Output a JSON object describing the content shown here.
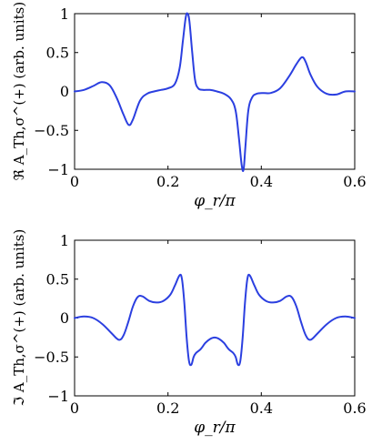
{
  "chart_data": [
    {
      "type": "line",
      "title": "",
      "xlabel": "φ_r/π",
      "ylabel": "ℜ A_Th,σ^(+) (arb. units)",
      "xlim": [
        0,
        0.6
      ],
      "ylim": [
        -1,
        1
      ],
      "xticks": [
        "0",
        "0.2",
        "0.4",
        "0.6"
      ],
      "yticks": [
        "1",
        "0.5",
        "0",
        "−0.5",
        "−1"
      ],
      "grid": false,
      "legend": "none",
      "color": "#2b3fe0",
      "series": [
        {
          "x": [
            0,
            0.02,
            0.04,
            0.058,
            0.075,
            0.09,
            0.105,
            0.116,
            0.125,
            0.14,
            0.155,
            0.17,
            0.185,
            0.2,
            0.215,
            0.225,
            0.232,
            0.238,
            0.242,
            0.246,
            0.252,
            0.258,
            0.265,
            0.275,
            0.29,
            0.305,
            0.32,
            0.335,
            0.345,
            0.352,
            0.358,
            0.362,
            0.366,
            0.372,
            0.38,
            0.39,
            0.405,
            0.42,
            0.44,
            0.46,
            0.475,
            0.487,
            0.495,
            0.505,
            0.52,
            0.54,
            0.56,
            0.58,
            0.6
          ],
          "y": [
            0,
            0.02,
            0.07,
            0.12,
            0.08,
            -0.08,
            -0.3,
            -0.43,
            -0.36,
            -0.12,
            -0.03,
            0.0,
            0.02,
            0.04,
            0.1,
            0.3,
            0.65,
            0.95,
            1.0,
            0.9,
            0.5,
            0.15,
            0.04,
            0.02,
            0.02,
            0.0,
            -0.03,
            -0.1,
            -0.25,
            -0.6,
            -0.95,
            -1.0,
            -0.7,
            -0.25,
            -0.08,
            -0.03,
            -0.02,
            -0.02,
            0.04,
            0.2,
            0.35,
            0.44,
            0.38,
            0.22,
            0.06,
            -0.03,
            -0.04,
            0.0,
            0.0
          ]
        }
      ]
    },
    {
      "type": "line",
      "title": "",
      "xlabel": "φ_r/π",
      "ylabel": "ℑ A_Th,σ^(+) (arb. units)",
      "xlim": [
        0,
        0.6
      ],
      "ylim": [
        -1,
        1
      ],
      "xticks": [
        "0",
        "0.2",
        "0.4",
        "0.6"
      ],
      "yticks": [
        "1",
        "0.5",
        "0",
        "−0.5",
        "−1"
      ],
      "grid": false,
      "legend": "none",
      "color": "#2b3fe0",
      "series": [
        {
          "x": [
            0,
            0.02,
            0.04,
            0.06,
            0.08,
            0.095,
            0.105,
            0.115,
            0.125,
            0.135,
            0.145,
            0.16,
            0.175,
            0.19,
            0.205,
            0.215,
            0.225,
            0.23,
            0.235,
            0.24,
            0.245,
            0.25,
            0.255,
            0.26,
            0.27,
            0.28,
            0.29,
            0.3,
            0.31,
            0.32,
            0.33,
            0.34,
            0.345,
            0.35,
            0.355,
            0.36,
            0.365,
            0.37,
            0.375,
            0.385,
            0.395,
            0.41,
            0.425,
            0.44,
            0.455,
            0.465,
            0.475,
            0.485,
            0.495,
            0.505,
            0.52,
            0.54,
            0.56,
            0.58,
            0.6
          ],
          "y": [
            0,
            0.02,
            0.0,
            -0.08,
            -0.2,
            -0.28,
            -0.22,
            -0.05,
            0.15,
            0.27,
            0.28,
            0.22,
            0.2,
            0.22,
            0.3,
            0.42,
            0.55,
            0.5,
            0.2,
            -0.25,
            -0.55,
            -0.6,
            -0.5,
            -0.45,
            -0.4,
            -0.32,
            -0.27,
            -0.25,
            -0.27,
            -0.32,
            -0.4,
            -0.45,
            -0.5,
            -0.6,
            -0.55,
            -0.25,
            0.2,
            0.5,
            0.55,
            0.42,
            0.3,
            0.22,
            0.2,
            0.22,
            0.28,
            0.27,
            0.15,
            -0.05,
            -0.22,
            -0.28,
            -0.2,
            -0.08,
            0.0,
            0.02,
            0.0
          ]
        }
      ]
    }
  ]
}
